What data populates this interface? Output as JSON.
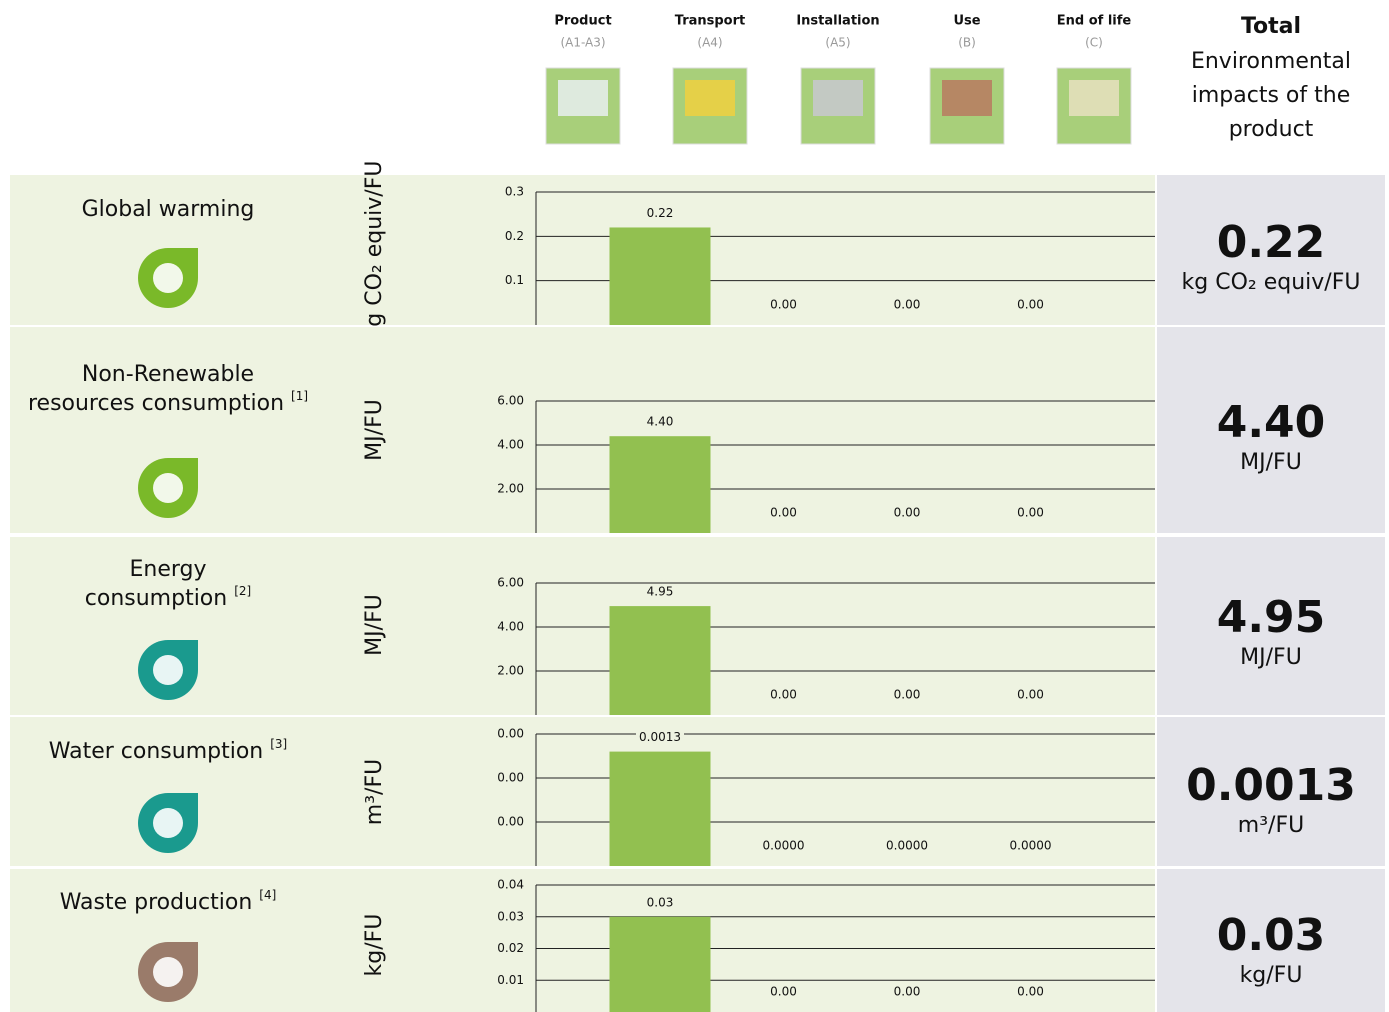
{
  "header": {
    "stages": [
      {
        "name": "Product",
        "code": "(A1-A3)"
      },
      {
        "name": "Transport",
        "code": "(A4)"
      },
      {
        "name": "Installation",
        "code": "(A5)"
      },
      {
        "name": "Use",
        "code": "(B)"
      },
      {
        "name": "End of life",
        "code": "(C)"
      }
    ],
    "total": {
      "title": "Total",
      "subtitle": [
        "Environmental",
        "impacts of the",
        "product"
      ]
    }
  },
  "rows": [
    {
      "label": [
        "Global warming"
      ],
      "unit": "kg CO₂ equiv/FU",
      "total": "0.22",
      "icon_color": "#7ab929"
    },
    {
      "label": [
        "Non-Renewable",
        "resources consumption"
      ],
      "note": "[1]",
      "unit": "MJ/FU",
      "total": "4.40",
      "icon_color": "#7ab929"
    },
    {
      "label": [
        "Energy",
        "consumption"
      ],
      "note": "[2]",
      "unit": "MJ/FU",
      "total": "4.95",
      "icon_color": "#1a9a8e"
    },
    {
      "label": [
        "Water consumption"
      ],
      "note": "[3]",
      "unit": "m³/FU",
      "total": "0.0013",
      "icon_color": "#1a9a8e"
    },
    {
      "label": [
        "Waste production"
      ],
      "note": "[4]",
      "unit": "kg/FU",
      "total": "0.03",
      "icon_color": "#9a7b6a"
    }
  ],
  "chart_data": [
    {
      "type": "bar",
      "categories": [
        null,
        null,
        null,
        null
      ],
      "values": [
        0.22,
        0,
        0,
        0
      ],
      "value_labels": [
        "0.22",
        "0.00",
        "0.00",
        "0.00"
      ],
      "color": "#92c050",
      "ylim": [
        0,
        0.3
      ],
      "yticks": [
        0.1,
        0.2,
        0.3
      ],
      "grid": true
    },
    {
      "type": "bar",
      "categories": [
        null,
        null,
        null,
        null
      ],
      "values": [
        4.4,
        0,
        0,
        0
      ],
      "value_labels": [
        "4.40",
        "0.00",
        "0.00",
        "0.00"
      ],
      "color": "#92c050",
      "ylim": [
        0,
        6
      ],
      "yticks": [
        {
          "value": 2,
          "label": "2.00"
        },
        {
          "value": 4,
          "label": "4.00"
        },
        {
          "value": 6,
          "label": "6.00"
        }
      ],
      "grid": true
    },
    {
      "type": "bar",
      "categories": [
        null,
        null,
        null,
        null
      ],
      "values": [
        4.95,
        0,
        0,
        0
      ],
      "value_labels": [
        "4.95",
        "0.00",
        "0.00",
        "0.00"
      ],
      "color": "#92c050",
      "ylim": [
        0,
        6
      ],
      "yticks": [
        {
          "value": 2,
          "label": "2.00"
        },
        {
          "value": 4,
          "label": "4.00"
        },
        {
          "value": 6,
          "label": "6.00"
        }
      ],
      "grid": true
    },
    {
      "type": "bar",
      "categories": [
        null,
        null,
        null,
        null
      ],
      "values": [
        0.0013,
        0,
        0,
        0
      ],
      "value_labels": [
        "0.0013",
        "0.0000",
        "0.0000",
        "0.0000"
      ],
      "color": "#92c050",
      "ylim": [
        0,
        0.0015
      ],
      "yticks": [
        {
          "value": 0.0005,
          "label": "0.00"
        },
        {
          "value": 0.001,
          "label": "0.00"
        },
        {
          "value": 0.0015,
          "label": "0.00"
        }
      ],
      "grid": true
    },
    {
      "type": "bar",
      "categories": [
        null,
        null,
        null,
        null
      ],
      "values": [
        0.03,
        0,
        0,
        0
      ],
      "value_labels": [
        "0.03",
        "0.00",
        "0.00",
        "0.00"
      ],
      "color": "#92c050",
      "ylim": [
        0,
        0.04
      ],
      "yticks": [
        0.01,
        0.02,
        0.03,
        0.04
      ],
      "grid": true
    }
  ]
}
